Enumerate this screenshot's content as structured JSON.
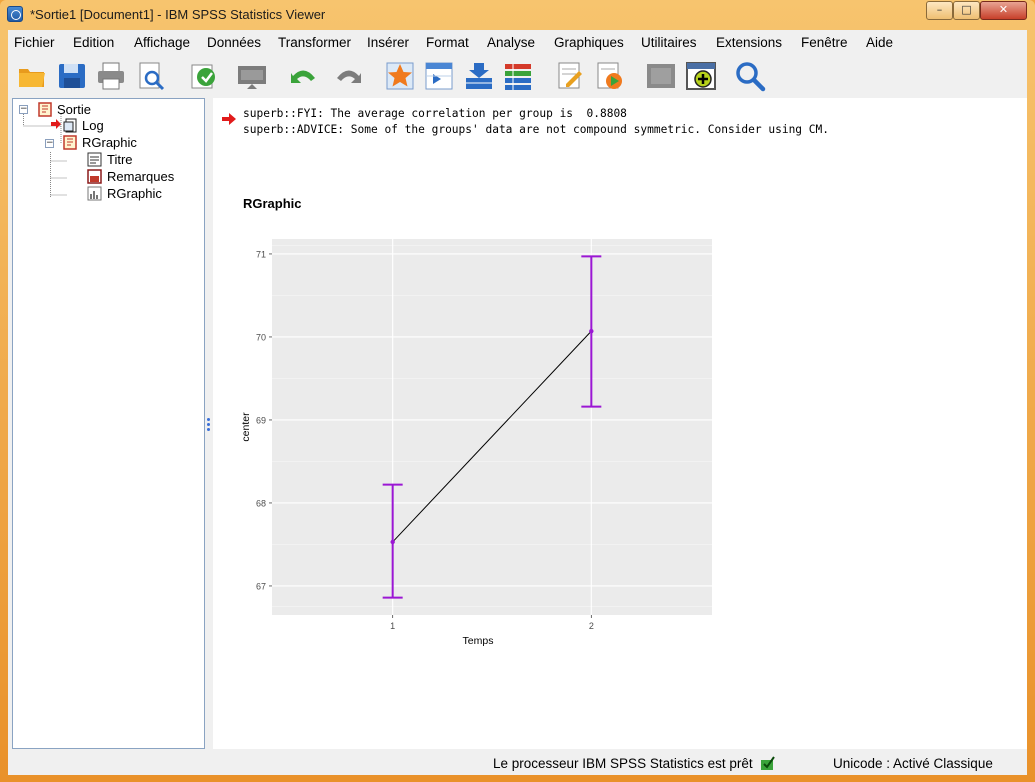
{
  "window": {
    "title": "*Sortie1 [Document1] - IBM SPSS Statistics Viewer",
    "controls": {
      "minimize": "–",
      "maximize": "□",
      "close": "✕"
    }
  },
  "menu": [
    "Fichier",
    "Edition",
    "Affichage",
    "Données",
    "Transformer",
    "Insérer",
    "Format",
    "Analyse",
    "Graphiques",
    "Utilitaires",
    "Extensions",
    "Fenêtre",
    "Aide"
  ],
  "toolbar": [
    "open-icon",
    "save-icon",
    "print-icon",
    "print-preview-icon",
    "export-icon",
    "recall-dialog-icon",
    "undo-icon",
    "redo-icon",
    "goto-case-icon",
    "goto-variable-icon",
    "insert-cases-icon",
    "variables-icon",
    "designate-window-icon",
    "run-syntax-icon",
    "hide-icon",
    "promote-icon",
    "search-icon"
  ],
  "tree": {
    "root": "Sortie",
    "log": "Log",
    "rgraphic": "RGraphic",
    "children": [
      "Titre",
      "Remarques",
      "RGraphic"
    ]
  },
  "output": {
    "log_lines": [
      "superb::FYI: The average correlation per group is  0.8808",
      "superb::ADVICE: Some of the groups' data are not compound symmetric. Consider using CM."
    ],
    "graph_heading": "RGraphic"
  },
  "chart_data": {
    "type": "line",
    "x": [
      "1",
      "2"
    ],
    "series": [
      {
        "values": [
          67.53,
          70.07
        ],
        "error_low": [
          66.86,
          69.16
        ],
        "error_high": [
          68.22,
          70.97
        ]
      }
    ],
    "xlabel": "Temps",
    "ylabel": "center",
    "yticks": [
      "67",
      "68",
      "69",
      "70",
      "71"
    ],
    "ylim": [
      66.65,
      71.18
    ],
    "grid": true,
    "colors": {
      "errorbar": "#9b17d4",
      "line": "#000000",
      "panel": "#ebebeb"
    }
  },
  "status": {
    "processor": "Le processeur IBM SPSS Statistics  est prêt",
    "unicode": "Unicode : Activé  Classique"
  }
}
